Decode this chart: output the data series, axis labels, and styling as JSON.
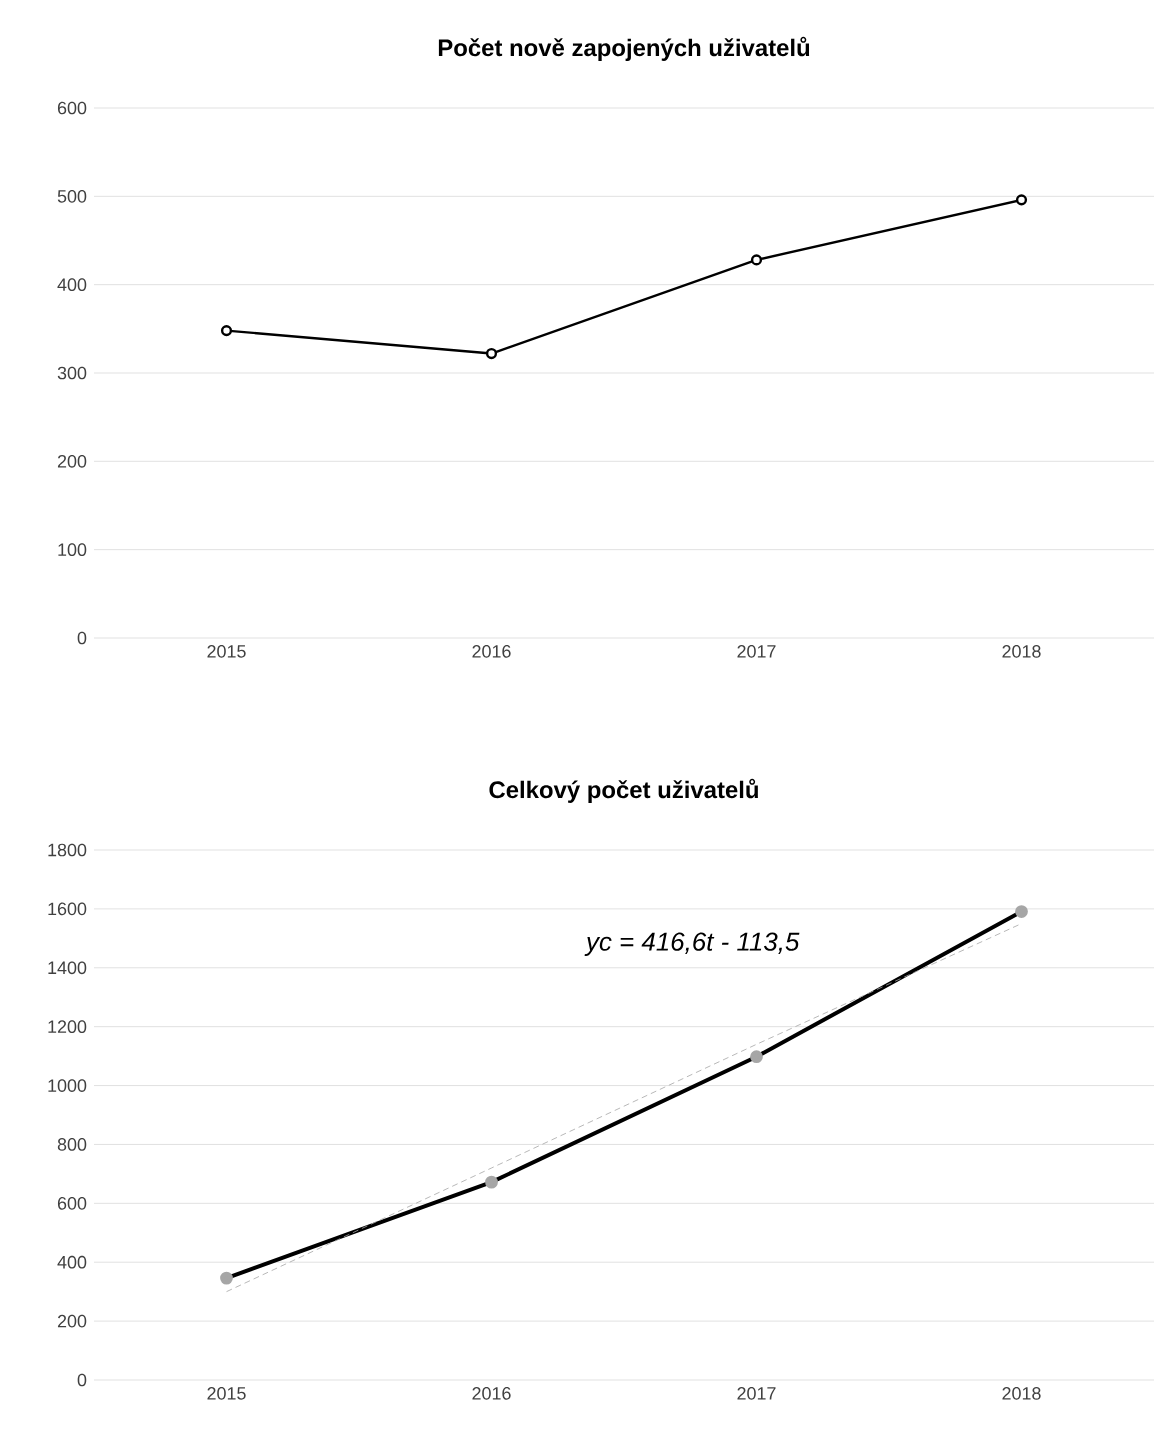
{
  "chart_data": [
    {
      "type": "line",
      "title": "Počet nově zapojených uživatelů",
      "categories": [
        "2015",
        "2016",
        "2017",
        "2018"
      ],
      "series": [
        {
          "color": "#000000",
          "values": [
            348,
            322,
            428,
            496
          ],
          "marker": "circle",
          "line_style": "solid"
        }
      ],
      "ylim": [
        0,
        600
      ],
      "yticks": [
        0,
        100,
        200,
        300,
        400,
        500,
        600
      ],
      "grid": "y"
    },
    {
      "type": "line",
      "title": "Celkový počet uživatelů",
      "categories": [
        "2015",
        "2016",
        "2017",
        "2018"
      ],
      "series": [
        {
          "color": "#000000",
          "values": [
            346,
            672,
            1098,
            1591
          ],
          "marker": "circle",
          "line_style": "solid"
        },
        {
          "color": "#a6a6a6",
          "values": [
            300,
            720,
            1140,
            1550
          ],
          "marker": "none",
          "line_style": "dotted"
        }
      ],
      "annotations": [
        "yc = 416,6t - 113,5"
      ],
      "ylim": [
        0,
        1800
      ],
      "yticks": [
        0,
        200,
        400,
        600,
        800,
        1000,
        1200,
        1400,
        1600,
        1800
      ],
      "grid": "y"
    }
  ]
}
